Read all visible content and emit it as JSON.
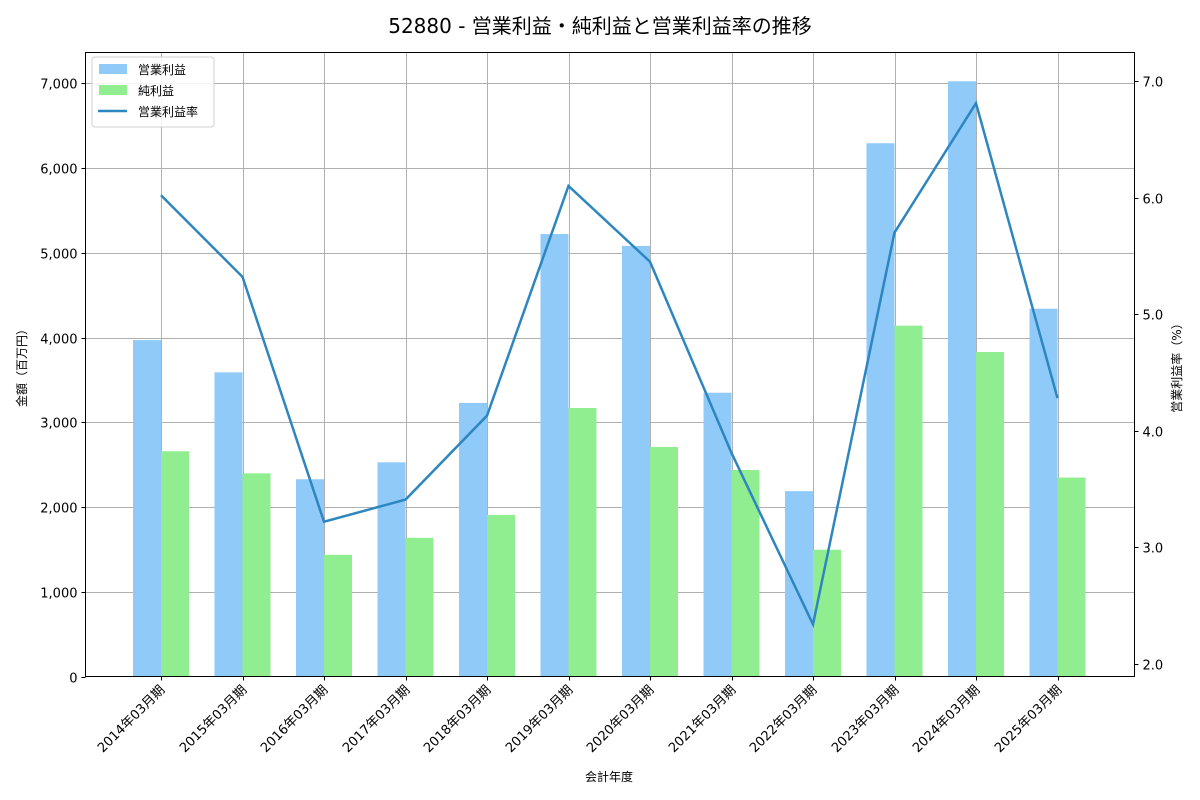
{
  "header": {
    "title": "52880 - 営業利益・純利益と営業利益率の推移"
  },
  "legend": {
    "items": [
      {
        "label": "営業利益",
        "type": "bar",
        "color": "#90caf9"
      },
      {
        "label": "純利益",
        "type": "bar",
        "color": "#90ee90"
      },
      {
        "label": "営業利益率",
        "type": "line",
        "color": "#2e86c1"
      }
    ]
  },
  "axes": {
    "x_label": "会計年度",
    "y_left_label": "金額（百万円）",
    "y_right_label": "営業利益率（%）",
    "y_left_ticks": [
      "0",
      "1,000",
      "2,000",
      "3,000",
      "4,000",
      "5,000",
      "6,000",
      "7,000"
    ],
    "y_right_ticks": [
      "2.0",
      "3.0",
      "4.0",
      "5.0",
      "6.0",
      "7.0"
    ]
  },
  "chart_data": {
    "type": "bar",
    "title": "52880 - 営業利益・純利益と営業利益率の推移",
    "xlabel": "会計年度",
    "ylabel": "金額（百万円）",
    "ylabel_right": "営業利益率（%）",
    "categories": [
      "2014年03月期",
      "2015年03月期",
      "2016年03月期",
      "2017年03月期",
      "2018年03月期",
      "2019年03月期",
      "2020年03月期",
      "2021年03月期",
      "2022年03月期",
      "2023年03月期",
      "2024年03月期",
      "2025年03月期"
    ],
    "series": [
      {
        "name": "営業利益",
        "type": "bar",
        "axis": "left",
        "color": "#90caf9",
        "values": [
          3970,
          3590,
          2330,
          2530,
          3230,
          5220,
          5080,
          3350,
          2190,
          6290,
          7020,
          4340
        ]
      },
      {
        "name": "純利益",
        "type": "bar",
        "axis": "left",
        "color": "#90ee90",
        "values": [
          2660,
          2400,
          1440,
          1640,
          1910,
          3170,
          2710,
          2440,
          1500,
          4140,
          3830,
          2350
        ]
      },
      {
        "name": "営業利益率",
        "type": "line",
        "axis": "right",
        "color": "#2e86c1",
        "values": [
          6.02,
          5.32,
          3.22,
          3.41,
          4.13,
          6.1,
          5.45,
          3.81,
          2.34,
          5.7,
          6.81,
          4.28
        ]
      }
    ],
    "ylim": [
      0,
      7350
    ],
    "ylim_right": [
      1.9,
      7.25
    ],
    "grid": true,
    "legend_position": "upper left"
  }
}
